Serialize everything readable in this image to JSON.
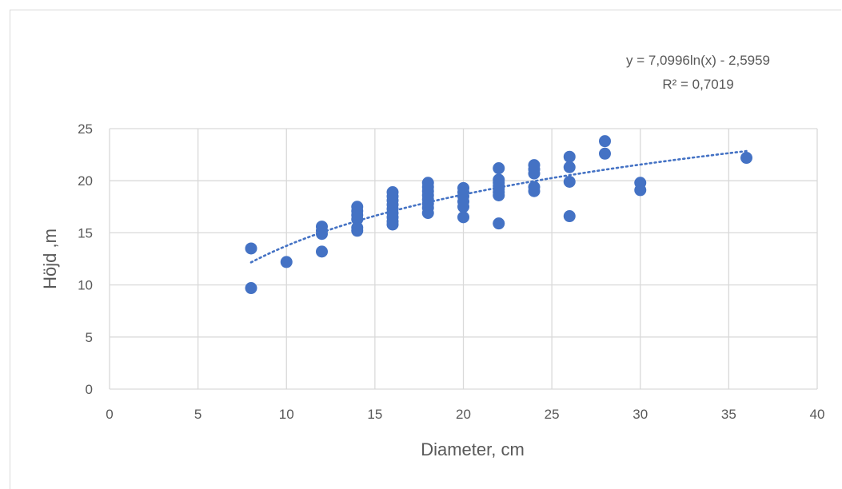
{
  "chart_data": {
    "type": "scatter",
    "xlabel": "Diameter, cm",
    "ylabel": "Höjd ,m",
    "xlim": [
      0,
      40
    ],
    "ylim": [
      0,
      25
    ],
    "xticks": [
      "0",
      "5",
      "10",
      "15",
      "20",
      "25",
      "30",
      "35",
      "40"
    ],
    "yticks": [
      "0",
      "5",
      "10",
      "15",
      "20",
      "25"
    ],
    "grid": true,
    "point_color": "#4472c4",
    "trendline": {
      "type": "logarithmic",
      "a": 7.0996,
      "b": -2.5959,
      "equation": "y = 7,0996ln(x) - 2,5959",
      "r_squared": "R² = 0,7019",
      "color": "#4472c4",
      "style": "dotted"
    },
    "series": [
      {
        "points": [
          [
            8,
            13.5
          ],
          [
            8,
            9.7
          ],
          [
            10,
            12.2
          ],
          [
            12,
            15.6
          ],
          [
            12,
            15.2
          ],
          [
            12,
            14.9
          ],
          [
            12,
            13.2
          ],
          [
            14,
            17.5
          ],
          [
            14,
            17.1
          ],
          [
            14,
            16.7
          ],
          [
            14,
            16.3
          ],
          [
            14,
            15.5
          ],
          [
            14,
            15.2
          ],
          [
            16,
            18.9
          ],
          [
            16,
            18.5
          ],
          [
            16,
            18.1
          ],
          [
            16,
            17.7
          ],
          [
            16,
            17.3
          ],
          [
            16,
            16.9
          ],
          [
            16,
            16.5
          ],
          [
            16,
            16.1
          ],
          [
            16,
            15.8
          ],
          [
            18,
            19.8
          ],
          [
            18,
            19.4
          ],
          [
            18,
            19.0
          ],
          [
            18,
            18.6
          ],
          [
            18,
            18.2
          ],
          [
            18,
            17.8
          ],
          [
            18,
            17.4
          ],
          [
            18,
            16.9
          ],
          [
            20,
            19.3
          ],
          [
            20,
            18.9
          ],
          [
            20,
            18.5
          ],
          [
            20,
            18.0
          ],
          [
            20,
            17.5
          ],
          [
            20,
            16.5
          ],
          [
            22,
            21.2
          ],
          [
            22,
            20.1
          ],
          [
            22,
            19.8
          ],
          [
            22,
            19.5
          ],
          [
            22,
            19.2
          ],
          [
            22,
            18.9
          ],
          [
            22,
            18.6
          ],
          [
            22,
            15.9
          ],
          [
            24,
            21.5
          ],
          [
            24,
            21.1
          ],
          [
            24,
            20.7
          ],
          [
            24,
            19.4
          ],
          [
            24,
            19.0
          ],
          [
            26,
            22.3
          ],
          [
            26,
            21.3
          ],
          [
            26,
            19.9
          ],
          [
            26,
            16.6
          ],
          [
            28,
            23.8
          ],
          [
            28,
            22.6
          ],
          [
            30,
            19.8
          ],
          [
            30,
            19.1
          ],
          [
            36,
            22.2
          ]
        ]
      }
    ]
  }
}
